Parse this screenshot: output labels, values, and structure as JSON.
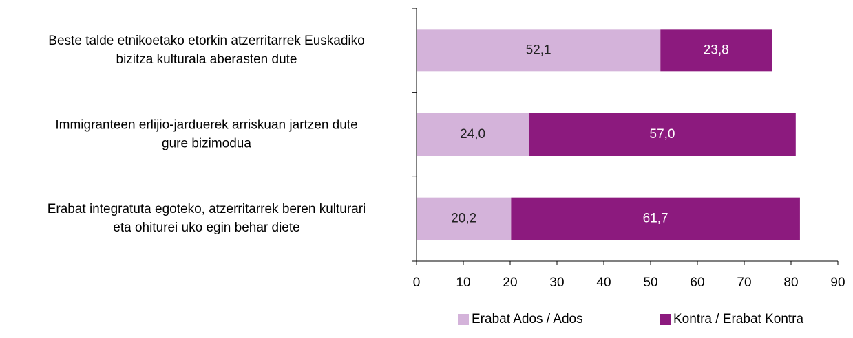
{
  "chart_data": {
    "type": "stacked-barh",
    "categories": [
      [
        "Beste talde etnikoetako etorkin atzerritarrek Euskadiko",
        "bizitza kulturala aberasten dute"
      ],
      [
        "Immigranteen erlijio-jarduerek arriskuan jartzen dute",
        "gure bizimodua"
      ],
      [
        "Erabat integratuta egoteko, atzerritarrek beren kulturari",
        "eta ohiturei uko egin behar diete"
      ]
    ],
    "series": [
      {
        "name": "Erabat Ados / Ados",
        "color": "#d4b3da",
        "label_color": "#222222",
        "values": [
          52.1,
          24.0,
          20.2
        ],
        "value_labels": [
          "52,1",
          "24,0",
          "20,2"
        ]
      },
      {
        "name": "Kontra / Erabat Kontra",
        "color": "#8c1a7e",
        "label_color": "#ffffff",
        "values": [
          23.8,
          57.0,
          61.7
        ],
        "value_labels": [
          "23,8",
          "57,0",
          "61,7"
        ]
      }
    ],
    "xlim": [
      0,
      90
    ],
    "xticks": [
      0,
      10,
      20,
      30,
      40,
      50,
      60,
      70,
      80,
      90
    ],
    "legend": "bottom"
  }
}
